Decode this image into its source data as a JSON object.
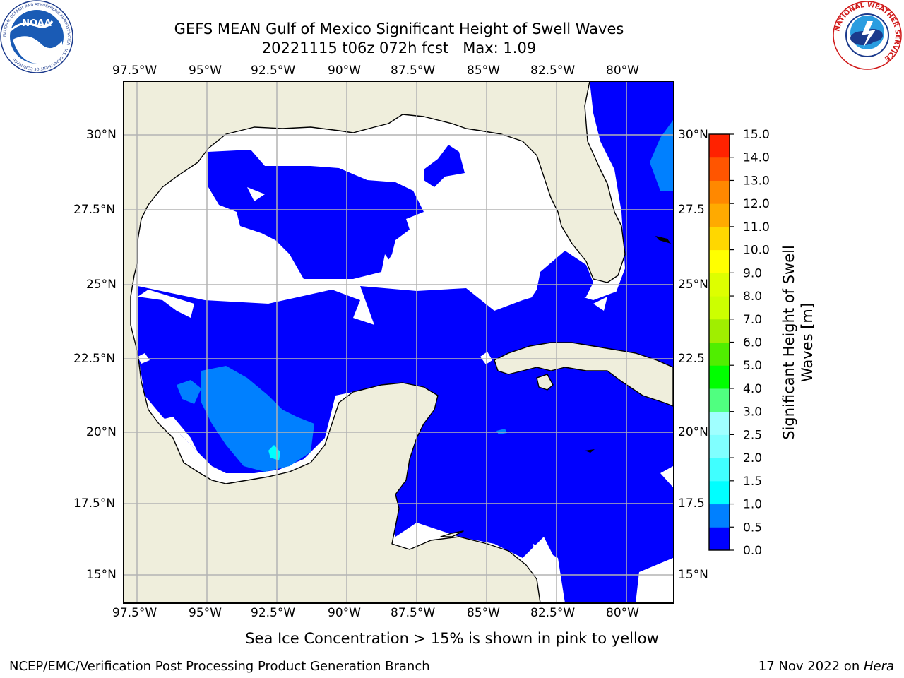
{
  "header": {
    "title": "GEFS MEAN Gulf of Mexico Significant Height of Swell Waves",
    "subtitle": "20221115 t06z 072h fcst",
    "max_label": "Max: 1.09"
  },
  "logos": {
    "left": {
      "text": "NOAA",
      "ring_text": "NATIONAL OCEANIC AND ATMOSPHERIC ADMINISTRATION · U.S. DEPARTMENT OF COMMERCE"
    },
    "right": {
      "ring_text": "NATIONAL WEATHER SERVICE"
    }
  },
  "map": {
    "lon_ticks": [
      "97.5°W",
      "95°W",
      "92.5°W",
      "90°W",
      "87.5°W",
      "85°W",
      "82.5°W",
      "80°W"
    ],
    "lat_ticks_left": [
      "30°N",
      "27.5°N",
      "25°N",
      "22.5°N",
      "20°N",
      "17.5°N",
      "15°N"
    ],
    "lat_ticks_right": [
      "30°N",
      "27.5",
      "25°N",
      "22.5",
      "20°N",
      "17.5",
      "15°N"
    ],
    "extent": {
      "lon": [
        -98,
        -78.2
      ],
      "lat": [
        14,
        31.7
      ]
    },
    "colors": {
      "land": "#efeedc",
      "band_0_05": "#0000ff",
      "band_05_10": "#0080ff",
      "band_10_15": "#00ffff",
      "grid": "#b3b3b3"
    }
  },
  "colorbar": {
    "label": "Significant Height of Swell Waves [m]",
    "label_line1": "Significant Height of Swell",
    "label_line2": "Waves [m]",
    "ticks": [
      "0.0",
      "0.5",
      "1.0",
      "1.5",
      "2.0",
      "2.5",
      "3.0",
      "4.0",
      "5.0",
      "6.0",
      "7.0",
      "8.0",
      "9.0",
      "10.0",
      "11.0",
      "12.0",
      "13.0",
      "14.0",
      "15.0"
    ],
    "colors": [
      "#0000ff",
      "#0080ff",
      "#00ffff",
      "#40ffff",
      "#80ffff",
      "#a0ffff",
      "#50ff80",
      "#00ff00",
      "#50ee00",
      "#a0ee00",
      "#ccff00",
      "#ddff00",
      "#ffff00",
      "#ffd700",
      "#ffaa00",
      "#ff8800",
      "#ff5500",
      "#ff2200"
    ]
  },
  "footer": {
    "note": "Sea Ice Concentration > 15% is shown in pink to yellow",
    "credit": "NCEP/EMC/Verification Post Processing Product Generation Branch",
    "date": "17 Nov 2022 on ",
    "host": "Hera"
  }
}
